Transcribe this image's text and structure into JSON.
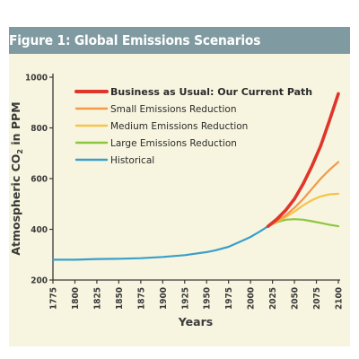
{
  "title": "Figure 1: Global Emissions Scenarios",
  "chart_data": {
    "type": "line",
    "xlabel": "Years",
    "ylabel_main": "Atmospheric CO",
    "ylabel_sub": "2",
    "ylabel_tail": " in PPM",
    "xlim": [
      1775,
      2100
    ],
    "ylim": [
      200,
      1000
    ],
    "x_ticks": [
      "1775",
      "1800",
      "1825",
      "1850",
      "1875",
      "1900",
      "1925",
      "1950",
      "1975",
      "2000",
      "2025",
      "2050",
      "2075",
      "2100"
    ],
    "y_ticks": [
      "200",
      "400",
      "600",
      "800",
      "1000"
    ],
    "grid": false,
    "legend_position": "top-left",
    "series": [
      {
        "name": "Historical",
        "color": "#3a9fc9",
        "x": [
          1775,
          1800,
          1825,
          1850,
          1875,
          1900,
          1925,
          1950,
          1960,
          1975,
          1990,
          2000,
          2010,
          2020
        ],
        "y": [
          280,
          280,
          283,
          284,
          286,
          291,
          298,
          310,
          317,
          331,
          354,
          370,
          390,
          412
        ]
      },
      {
        "name": "Large Emissions Reduction",
        "color": "#8cc63f",
        "x": [
          2020,
          2030,
          2040,
          2050,
          2060,
          2070,
          2080,
          2090,
          2100
        ],
        "y": [
          412,
          428,
          438,
          440,
          438,
          432,
          425,
          418,
          412
        ]
      },
      {
        "name": "Medium Emissions Reduction",
        "color": "#f7c34a",
        "x": [
          2020,
          2030,
          2040,
          2050,
          2060,
          2070,
          2080,
          2090,
          2100
        ],
        "y": [
          412,
          430,
          448,
          470,
          495,
          515,
          530,
          538,
          540
        ]
      },
      {
        "name": "Small Emissions Reduction",
        "color": "#f2994a",
        "x": [
          2020,
          2030,
          2040,
          2050,
          2060,
          2070,
          2080,
          2090,
          2100
        ],
        "y": [
          412,
          432,
          455,
          485,
          520,
          560,
          600,
          635,
          665
        ]
      },
      {
        "name": "Business as Usual: Our Current Path",
        "color": "#e0352b",
        "x": [
          2020,
          2030,
          2040,
          2050,
          2060,
          2070,
          2080,
          2090,
          2100
        ],
        "y": [
          412,
          440,
          475,
          520,
          580,
          650,
          730,
          830,
          935
        ]
      }
    ],
    "legend": [
      {
        "label": "Business as Usual: Our Current Path",
        "color": "#e0352b",
        "bold": true
      },
      {
        "label": "Small Emissions Reduction",
        "color": "#f2994a",
        "bold": false
      },
      {
        "label": "Medium Emissions Reduction",
        "color": "#f7c34a",
        "bold": false
      },
      {
        "label": "Large Emissions Reduction",
        "color": "#8cc63f",
        "bold": false
      },
      {
        "label": "Historical",
        "color": "#3a9fc9",
        "bold": false
      }
    ]
  }
}
